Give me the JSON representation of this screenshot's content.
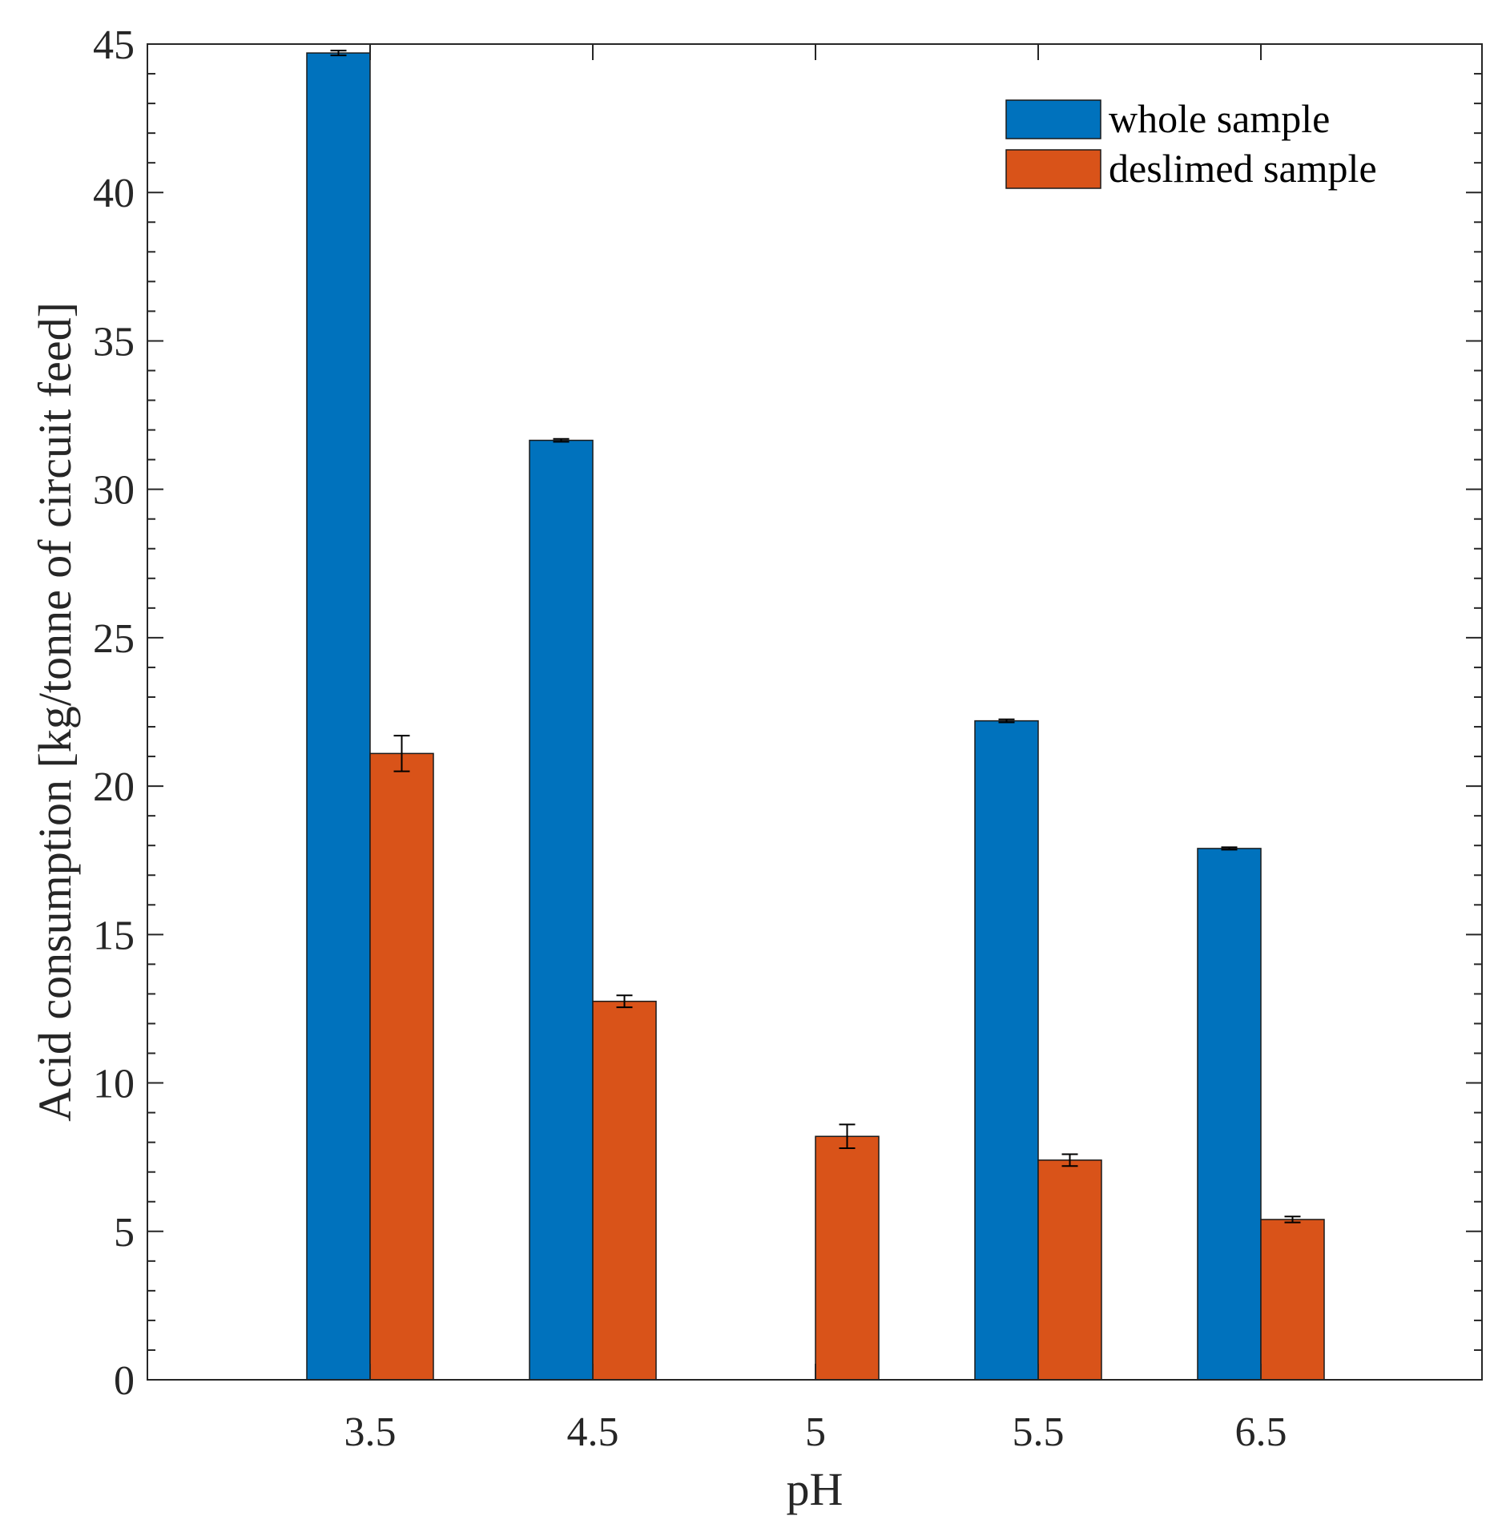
{
  "chart_data": {
    "type": "bar",
    "title": "",
    "xlabel": "pH",
    "ylabel": "Acid consumption [kg/tonne of circuit feed]",
    "categories": [
      "3.5",
      "4.5",
      "5",
      "5.5",
      "6.5"
    ],
    "ylim": [
      0,
      45
    ],
    "yticks": [
      "0",
      "5",
      "10",
      "15",
      "20",
      "25",
      "30",
      "35",
      "40",
      "45"
    ],
    "grid": false,
    "legend_position": "top-right",
    "series": [
      {
        "name": "whole sample",
        "color": "#0072BD",
        "values": [
          44.7,
          31.65,
          null,
          22.2,
          17.9
        ],
        "errors": [
          0.08,
          0.05,
          null,
          0.05,
          0.04
        ]
      },
      {
        "name": "deslimed sample",
        "color": "#D95319",
        "values": [
          21.1,
          12.75,
          8.2,
          7.4,
          5.4
        ],
        "errors": [
          0.6,
          0.2,
          0.4,
          0.2,
          0.1
        ]
      }
    ]
  }
}
